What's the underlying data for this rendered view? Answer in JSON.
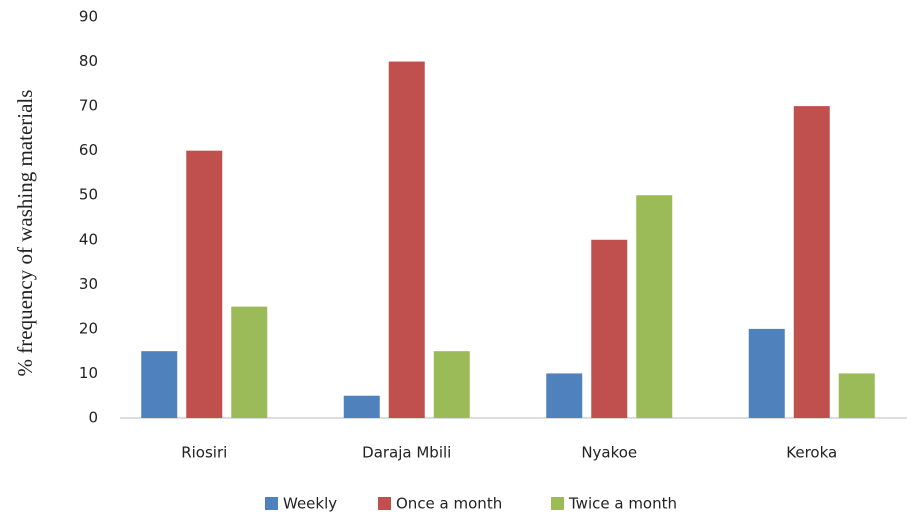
{
  "chart_data": {
    "type": "bar",
    "y_label": "% frequency  of washing materials",
    "categories": [
      "Riosiri",
      "Daraja Mbili",
      "Nyakoe",
      "Keroka"
    ],
    "series": [
      {
        "name": "Weekly",
        "color": "#4f81bd",
        "values": [
          15,
          5,
          10,
          20
        ]
      },
      {
        "name": "Once a month",
        "color": "#c0504d",
        "values": [
          60,
          80,
          40,
          70
        ]
      },
      {
        "name": "Twice a month",
        "color": "#9bbb59",
        "values": [
          25,
          15,
          50,
          10
        ]
      }
    ],
    "ylim": [
      0,
      90
    ],
    "yticks": [
      0,
      10,
      20,
      30,
      40,
      50,
      60,
      70,
      80,
      90
    ],
    "grid": false,
    "legend": "bottom"
  }
}
